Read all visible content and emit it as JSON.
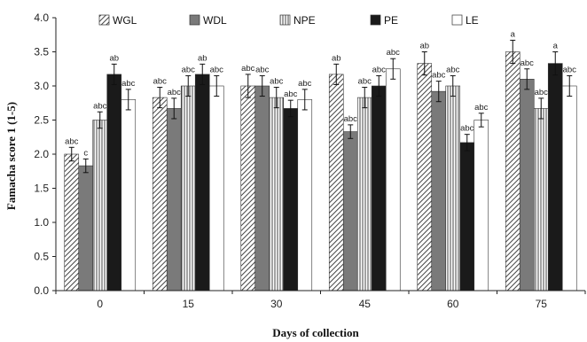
{
  "chart_data": {
    "type": "bar",
    "title": "",
    "xlabel": "Days of collection",
    "ylabel": "Famacha score 1 (1-5)",
    "ylim": [
      0,
      4
    ],
    "yticks": [
      "0.0",
      "0.5",
      "1.0",
      "1.5",
      "2.0",
      "2.5",
      "3.0",
      "3.5",
      "4.0"
    ],
    "categories": [
      "0",
      "15",
      "30",
      "45",
      "60",
      "75"
    ],
    "legend_position": "top",
    "grid": false,
    "series": [
      {
        "name": "WGL",
        "pattern": "diagonal-hatch",
        "values": [
          2.0,
          2.83,
          3.0,
          3.17,
          3.33,
          3.5
        ],
        "errors": [
          0.1,
          0.15,
          0.17,
          0.15,
          0.17,
          0.17
        ],
        "labels": [
          "abc",
          "abc",
          "abc",
          "ab",
          "ab",
          "a"
        ]
      },
      {
        "name": "WDL",
        "pattern": "solid-gray",
        "values": [
          1.83,
          2.67,
          3.0,
          2.33,
          2.92,
          3.1
        ],
        "errors": [
          0.1,
          0.15,
          0.15,
          0.1,
          0.15,
          0.15
        ],
        "labels": [
          "c",
          "abc",
          "abc",
          "abc",
          "abc",
          "abc"
        ]
      },
      {
        "name": "NPE",
        "pattern": "vertical-lines",
        "values": [
          2.5,
          3.0,
          2.83,
          2.83,
          3.0,
          2.67
        ],
        "errors": [
          0.12,
          0.15,
          0.15,
          0.15,
          0.15,
          0.15
        ],
        "labels": [
          "abc",
          "abc",
          "abc",
          "abc",
          "abc",
          "abc"
        ]
      },
      {
        "name": "PE",
        "pattern": "solid-black",
        "values": [
          3.17,
          3.17,
          2.67,
          3.0,
          2.17,
          3.33
        ],
        "errors": [
          0.15,
          0.15,
          0.12,
          0.15,
          0.12,
          0.17
        ],
        "labels": [
          "ab",
          "ab",
          "abc",
          "abc",
          "abc",
          "a"
        ]
      },
      {
        "name": "LE",
        "pattern": "white",
        "values": [
          2.8,
          3.0,
          2.8,
          3.25,
          2.5,
          3.0
        ],
        "errors": [
          0.15,
          0.15,
          0.15,
          0.15,
          0.1,
          0.15
        ],
        "labels": [
          "abc",
          "abc",
          "abc",
          "abc",
          "abc",
          "abc"
        ]
      }
    ]
  }
}
